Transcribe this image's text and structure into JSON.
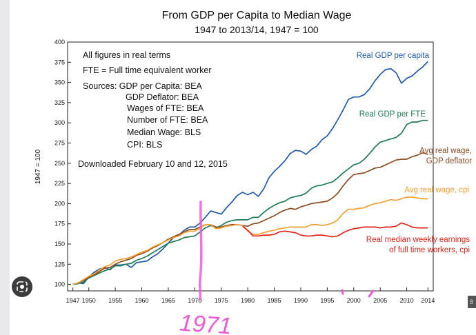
{
  "chart_data": {
    "type": "line",
    "title": "From GDP per Capita to Median Wage",
    "subtitle": "1947 to 2013/14, 1947 = 100",
    "ylabel": "1947 = 100",
    "xlabel": "",
    "xlim": [
      1946,
      2015
    ],
    "ylim": [
      92,
      400
    ],
    "x_ticks": [
      1947,
      1950,
      1955,
      1960,
      1965,
      1970,
      1975,
      1980,
      1985,
      1990,
      1995,
      2000,
      2005,
      2010,
      2014
    ],
    "y_ticks": [
      100,
      125,
      150,
      175,
      200,
      225,
      250,
      275,
      300,
      325,
      350,
      375,
      400
    ],
    "notes": [
      "All figures in real terms",
      "FTE = Full time equivalent worker",
      "Sources:  GDP per Capita:  BEA",
      "GDP Deflator:  BEA",
      "Wages of FTE:  BEA",
      "Number of FTE:  BEA",
      "Median Wage:  BLS",
      "CPI:  BLS",
      "Downloaded February 10 and 12, 2015"
    ],
    "series": [
      {
        "name": "Real GDP per capita",
        "color": "#1f5aa6",
        "label": [
          "Real GDP per capita"
        ],
        "x": [
          1947,
          1948,
          1949,
          1950,
          1951,
          1952,
          1953,
          1954,
          1955,
          1956,
          1957,
          1958,
          1959,
          1960,
          1961,
          1962,
          1963,
          1964,
          1965,
          1966,
          1967,
          1968,
          1969,
          1970,
          1971,
          1972,
          1973,
          1974,
          1975,
          1976,
          1977,
          1978,
          1979,
          1980,
          1981,
          1982,
          1983,
          1984,
          1985,
          1986,
          1987,
          1988,
          1989,
          1990,
          1991,
          1992,
          1993,
          1994,
          1995,
          1996,
          1997,
          1998,
          1999,
          2000,
          2001,
          2002,
          2003,
          2004,
          2005,
          2006,
          2007,
          2008,
          2009,
          2010,
          2011,
          2012,
          2013,
          2014
        ],
        "values": [
          100,
          102,
          101,
          109,
          115,
          119,
          121,
          118,
          124,
          124,
          125,
          121,
          127,
          128,
          129,
          134,
          138,
          144,
          151,
          158,
          161,
          167,
          171,
          171,
          176,
          183,
          191,
          189,
          187,
          195,
          202,
          210,
          214,
          211,
          214,
          209,
          218,
          232,
          240,
          246,
          253,
          262,
          266,
          265,
          261,
          267,
          271,
          279,
          284,
          293,
          304,
          316,
          329,
          332,
          332,
          335,
          342,
          352,
          360,
          366,
          367,
          362,
          349,
          355,
          358,
          364,
          369,
          376
        ]
      },
      {
        "name": "Real GDP per FTE",
        "color": "#1f7a55",
        "label": [
          "Real GDP per FTE"
        ],
        "x": [
          1947,
          1948,
          1949,
          1950,
          1951,
          1952,
          1953,
          1954,
          1955,
          1956,
          1957,
          1958,
          1959,
          1960,
          1961,
          1962,
          1963,
          1964,
          1965,
          1966,
          1967,
          1968,
          1969,
          1970,
          1971,
          1972,
          1973,
          1974,
          1975,
          1976,
          1977,
          1978,
          1979,
          1980,
          1981,
          1982,
          1983,
          1984,
          1985,
          1986,
          1987,
          1988,
          1989,
          1990,
          1991,
          1992,
          1993,
          1994,
          1995,
          1996,
          1997,
          1998,
          1999,
          2000,
          2001,
          2002,
          2003,
          2004,
          2005,
          2006,
          2007,
          2008,
          2009,
          2010,
          2011,
          2012,
          2013,
          2014
        ],
        "values": [
          100,
          101,
          103,
          108,
          111,
          114,
          117,
          119,
          123,
          123,
          125,
          126,
          130,
          132,
          135,
          139,
          143,
          147,
          151,
          153,
          155,
          158,
          159,
          160,
          165,
          170,
          173,
          170,
          173,
          177,
          179,
          180,
          180,
          180,
          183,
          183,
          189,
          194,
          198,
          201,
          203,
          207,
          209,
          210,
          213,
          219,
          222,
          223,
          225,
          227,
          232,
          238,
          243,
          248,
          250,
          255,
          262,
          270,
          276,
          278,
          280,
          282,
          287,
          298,
          301,
          301,
          303,
          303
        ]
      },
      {
        "name": "Avg real wage, GDP deflator",
        "color": "#8a4b22",
        "label": [
          "Avg real wage,",
          "GDP deflator"
        ],
        "x": [
          1947,
          1948,
          1949,
          1950,
          1951,
          1952,
          1953,
          1954,
          1955,
          1956,
          1957,
          1958,
          1959,
          1960,
          1961,
          1962,
          1963,
          1964,
          1965,
          1966,
          1967,
          1968,
          1969,
          1970,
          1971,
          1972,
          1973,
          1974,
          1975,
          1976,
          1977,
          1978,
          1979,
          1980,
          1981,
          1982,
          1983,
          1984,
          1985,
          1986,
          1987,
          1988,
          1989,
          1990,
          1991,
          1992,
          1993,
          1994,
          1995,
          1996,
          1997,
          1998,
          1999,
          2000,
          2001,
          2002,
          2003,
          2004,
          2005,
          2006,
          2007,
          2008,
          2009,
          2010,
          2011,
          2012,
          2013,
          2014
        ],
        "values": [
          100,
          102,
          105,
          109,
          112,
          116,
          120,
          121,
          125,
          128,
          130,
          132,
          136,
          138,
          141,
          145,
          148,
          152,
          156,
          159,
          162,
          165,
          168,
          168,
          171,
          174,
          174,
          171,
          171,
          173,
          174,
          174,
          173,
          172,
          175,
          176,
          179,
          182,
          185,
          189,
          192,
          194,
          193,
          196,
          198,
          200,
          201,
          202,
          203,
          207,
          213,
          222,
          230,
          236,
          237,
          238,
          241,
          244,
          245,
          248,
          251,
          254,
          255,
          255,
          258,
          260,
          263,
          261
        ]
      },
      {
        "name": "Avg real wage, cpi",
        "color": "#f5a032",
        "label": [
          "Avg real wage, cpi"
        ],
        "x": [
          1947,
          1948,
          1949,
          1950,
          1951,
          1952,
          1953,
          1954,
          1955,
          1956,
          1957,
          1958,
          1959,
          1960,
          1961,
          1962,
          1963,
          1964,
          1965,
          1966,
          1967,
          1968,
          1969,
          1970,
          1971,
          1972,
          1973,
          1974,
          1975,
          1976,
          1977,
          1978,
          1979,
          1980,
          1981,
          1982,
          1983,
          1984,
          1985,
          1986,
          1987,
          1988,
          1989,
          1990,
          1991,
          1992,
          1993,
          1994,
          1995,
          1996,
          1997,
          1998,
          1999,
          2000,
          2001,
          2002,
          2003,
          2004,
          2005,
          2006,
          2007,
          2008,
          2009,
          2010,
          2011,
          2012,
          2013,
          2014
        ],
        "values": [
          100,
          102,
          106,
          110,
          113,
          118,
          122,
          124,
          129,
          131,
          132,
          134,
          137,
          140,
          142,
          146,
          149,
          152,
          155,
          158,
          160,
          164,
          166,
          166,
          170,
          174,
          174,
          169,
          170,
          172,
          173,
          174,
          173,
          166,
          162,
          162,
          164,
          166,
          167,
          169,
          170,
          171,
          171,
          171,
          171,
          174,
          174,
          173,
          174,
          176,
          180,
          188,
          193,
          193,
          194,
          195,
          198,
          200,
          201,
          203,
          205,
          204,
          206,
          208,
          208,
          207,
          206,
          206
        ]
      },
      {
        "name": "Real median weekly earnings of full time workers, cpi",
        "color": "#e1241a",
        "label": [
          "Real median weekly earnings",
          "of full time workers, cpi"
        ],
        "x": [
          1979,
          1980,
          1981,
          1982,
          1983,
          1984,
          1985,
          1986,
          1987,
          1988,
          1989,
          1990,
          1991,
          1992,
          1993,
          1994,
          1995,
          1996,
          1997,
          1998,
          1999,
          2000,
          2001,
          2002,
          2003,
          2004,
          2005,
          2006,
          2007,
          2008,
          2009,
          2010,
          2011,
          2012,
          2013,
          2014
        ],
        "values": [
          172,
          167,
          160,
          160,
          161,
          161,
          162,
          165,
          166,
          165,
          164,
          161,
          160,
          160,
          161,
          161,
          160,
          159,
          160,
          164,
          167,
          169,
          170,
          171,
          171,
          171,
          170,
          171,
          171,
          172,
          176,
          174,
          171,
          170,
          170,
          170
        ]
      }
    ],
    "annotations": [
      {
        "text": "1971",
        "kind": "handwritten",
        "color": "#ee5ad6"
      }
    ]
  },
  "ui": {
    "corner_chip_text": "8"
  }
}
